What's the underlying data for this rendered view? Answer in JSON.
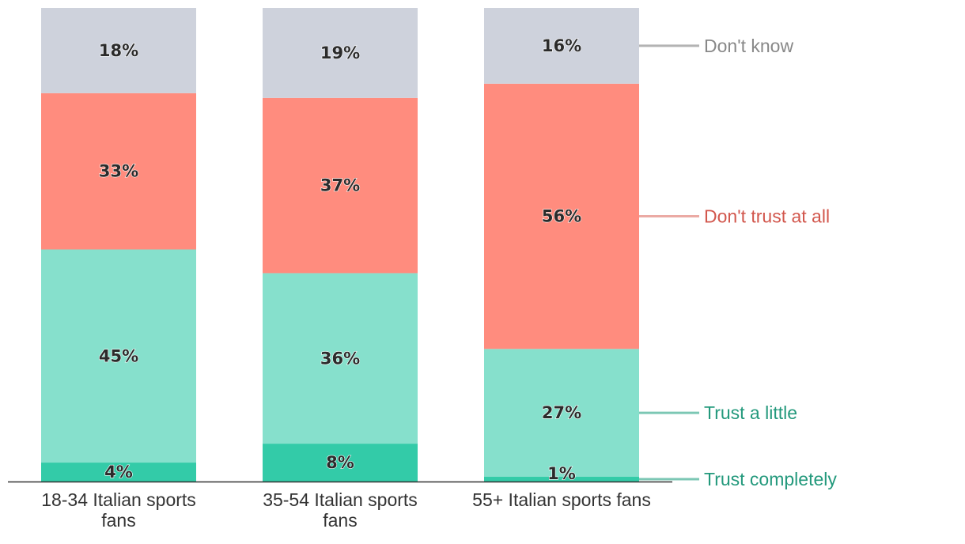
{
  "chart_data": {
    "type": "bar",
    "stacked": true,
    "categories": [
      [
        "18-34 Italian sports",
        "fans"
      ],
      [
        "35-54 Italian sports",
        "fans"
      ],
      [
        "55+ Italian sports fans"
      ]
    ],
    "series": [
      {
        "name": "Trust completely",
        "values": [
          4,
          8,
          1
        ],
        "labels": [
          "4%",
          "8%",
          "1%"
        ],
        "color": "#33cba8",
        "legend_color": "#23997c",
        "line_color": "#7cc7b4"
      },
      {
        "name": "Trust a little",
        "values": [
          45,
          36,
          27
        ],
        "labels": [
          "45%",
          "36%",
          "27%"
        ],
        "color": "#86e0cc",
        "legend_color": "#23997c",
        "line_color": "#7cc7b4"
      },
      {
        "name": "Don't trust at all",
        "values": [
          33,
          37,
          56
        ],
        "labels": [
          "33%",
          "37%",
          "56%"
        ],
        "color": "#ff8c7e",
        "legend_color": "#d2574d",
        "line_color": "#ebaaa4"
      },
      {
        "name": "Don't know",
        "values": [
          18,
          19,
          16
        ],
        "labels": [
          "18%",
          "19%",
          "16%"
        ],
        "color": "#ced2dc",
        "legend_color": "#888888",
        "line_color": "#b3b3b3"
      }
    ],
    "ylim": [
      0,
      100
    ],
    "grid": false,
    "legend_placement": "right, direct labels"
  }
}
